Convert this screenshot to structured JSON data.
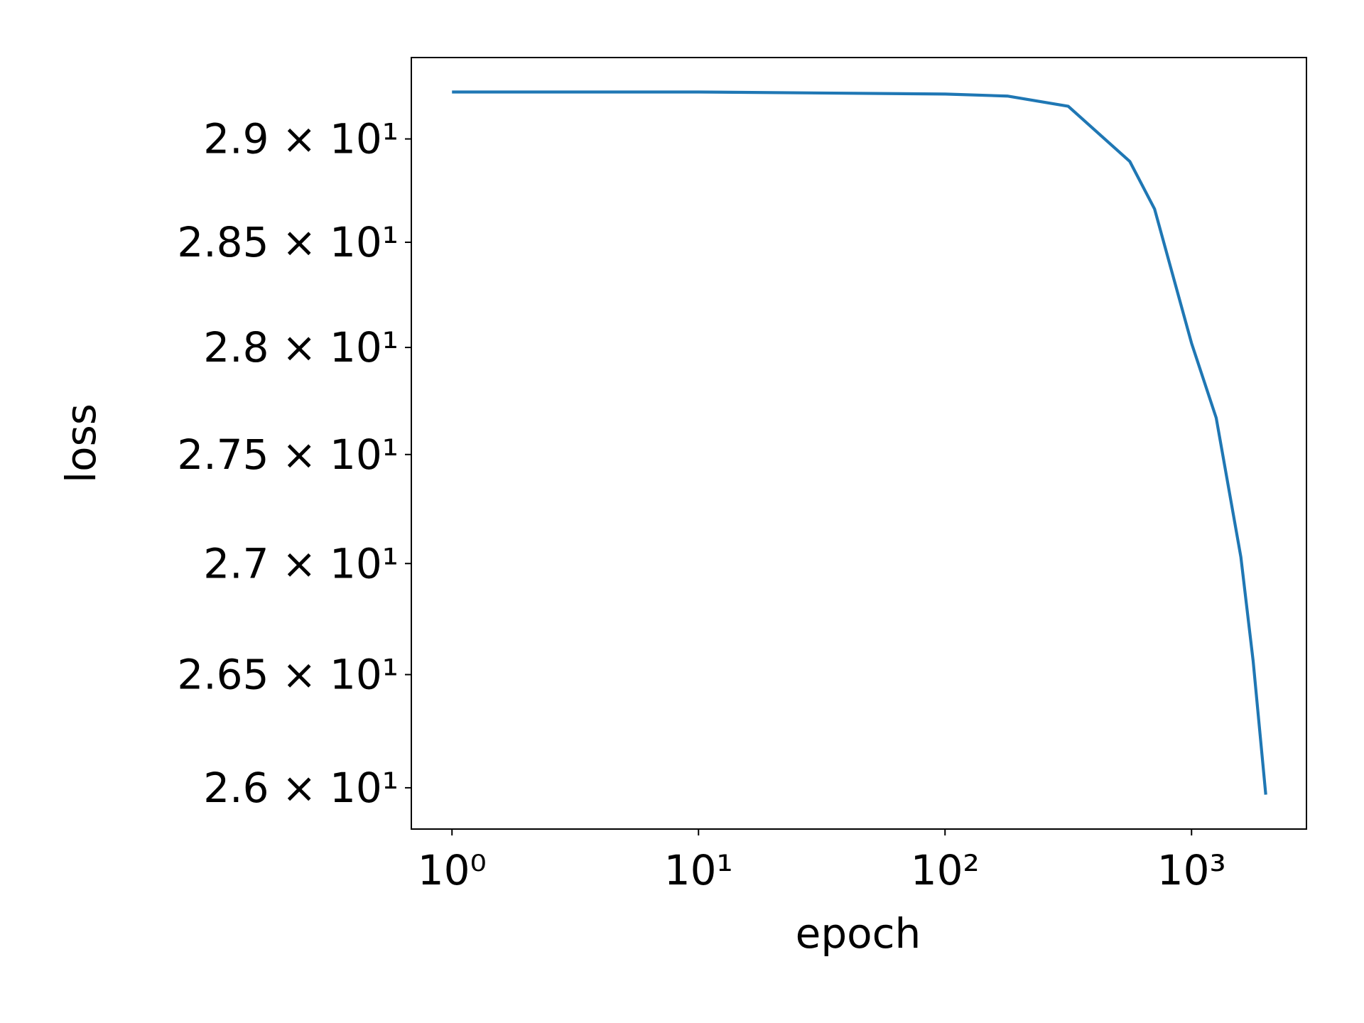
{
  "chart_data": {
    "type": "line",
    "x_label": "epoch",
    "y_label": "loss",
    "x_scale": "log",
    "y_scale": "log",
    "x": [
      1,
      10,
      100,
      179,
      316,
      562,
      708,
      1000,
      1259,
      1585,
      1778,
      2000
    ],
    "series": [
      {
        "color": "#1f77b4",
        "values": [
          29.23,
          29.23,
          29.22,
          29.21,
          29.16,
          28.89,
          28.66,
          28.02,
          27.67,
          27.03,
          26.56,
          25.97
        ]
      }
    ],
    "xlim": [
      0.684,
      2925
    ],
    "ylim": [
      25.82,
      29.4
    ],
    "xticks": [
      {
        "value": 1,
        "label": "10⁰"
      },
      {
        "value": 10,
        "label": "10¹"
      },
      {
        "value": 100,
        "label": "10²"
      },
      {
        "value": 1000,
        "label": "10³"
      }
    ],
    "yticks": [
      {
        "value": 26,
        "label": "2.6 × 10¹"
      },
      {
        "value": 26.5,
        "label": "2.65 × 10¹"
      },
      {
        "value": 27,
        "label": "2.7 × 10¹"
      },
      {
        "value": 27.5,
        "label": "2.75 × 10¹"
      },
      {
        "value": 28,
        "label": "2.8 × 10¹"
      },
      {
        "value": 28.5,
        "label": "2.85 × 10¹"
      },
      {
        "value": 29,
        "label": "2.9 × 10¹"
      }
    ],
    "grid": false
  }
}
